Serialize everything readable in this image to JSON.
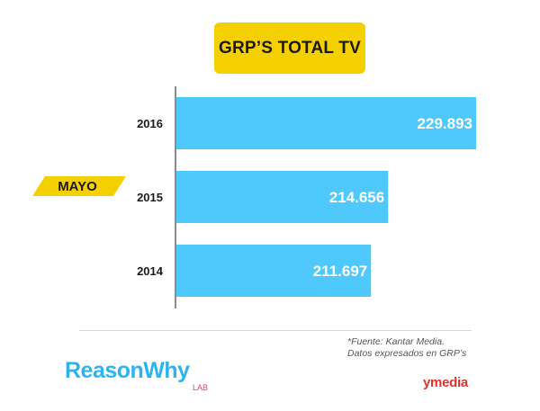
{
  "title": "GRP’S TOTAL TV",
  "month_tag": "MAYO",
  "source": {
    "line1": "*Fuente: Kantar Media.",
    "line2": "Datos expresados en GRP’s"
  },
  "logos": {
    "reasonwhy": "ReasonWhy",
    "reasonwhy_sub": "LAB",
    "ymedia": "ymedia"
  },
  "colors": {
    "bar": "#4fc8fb",
    "title_bg": "#f5d000",
    "tag": "#f5d000",
    "reasonwhy": "#2db4f0",
    "ymedia": "#e8302a"
  },
  "chart_data": {
    "type": "bar",
    "orientation": "horizontal",
    "title": "GRP’S TOTAL TV",
    "categories": [
      "2016",
      "2015",
      "2014"
    ],
    "values": [
      229893,
      214656,
      211697
    ],
    "value_labels": [
      "229.893",
      "214.656",
      "211.697"
    ],
    "xlabel": "",
    "ylabel": "",
    "grid": false,
    "legend": "none"
  }
}
